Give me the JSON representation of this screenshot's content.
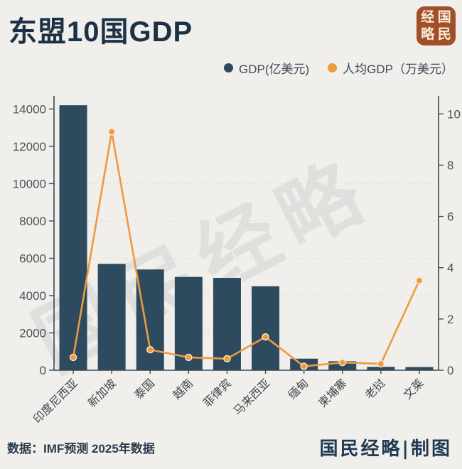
{
  "page": {
    "background": "#f0efec"
  },
  "header": {
    "title": "东盟10国GDP",
    "seal_color": "#a24e28",
    "seal_chars": [
      "经",
      "国",
      "略",
      "民"
    ]
  },
  "legend": [
    {
      "label": "GDP(亿美元)",
      "color": "#2d4a5f"
    },
    {
      "label": "人均GDP（万美元）",
      "color": "#ee9a3d"
    }
  ],
  "watermark_text": "国民经略",
  "chart_data": {
    "type": "bar",
    "title": "东盟10国GDP",
    "categories": [
      "印度尼西亚",
      "新加坡",
      "泰国",
      "越南",
      "菲律宾",
      "马来西亚",
      "缅甸",
      "柬埔寨",
      "老挝",
      "文莱"
    ],
    "series": [
      {
        "name": "GDP(亿美元)",
        "type": "bar",
        "axis": "left",
        "color": "#2d4a5f",
        "values": [
          14200,
          5700,
          5400,
          5000,
          4950,
          4500,
          620,
          480,
          180,
          170
        ]
      },
      {
        "name": "人均GDP（万美元）",
        "type": "line",
        "axis": "right",
        "color": "#ee9a3d",
        "values": [
          0.5,
          9.3,
          0.8,
          0.5,
          0.45,
          1.3,
          0.15,
          0.3,
          0.25,
          3.5
        ]
      }
    ],
    "left_axis": {
      "ticks": [
        0,
        2000,
        4000,
        6000,
        8000,
        10000,
        12000,
        14000
      ],
      "max": 14700,
      "label_color": "#4f5158"
    },
    "right_axis": {
      "ticks": [
        0,
        2,
        4,
        6,
        8,
        10
      ],
      "max": 10.7,
      "label_color": "#4f5158"
    },
    "grid": true,
    "grid_color": "#dbdad6",
    "axis_color": "#3f4752",
    "legend_position": "top-right"
  },
  "footer": {
    "source": "数据：IMF预测  2025年数据",
    "credit": "国民经略|制图"
  }
}
